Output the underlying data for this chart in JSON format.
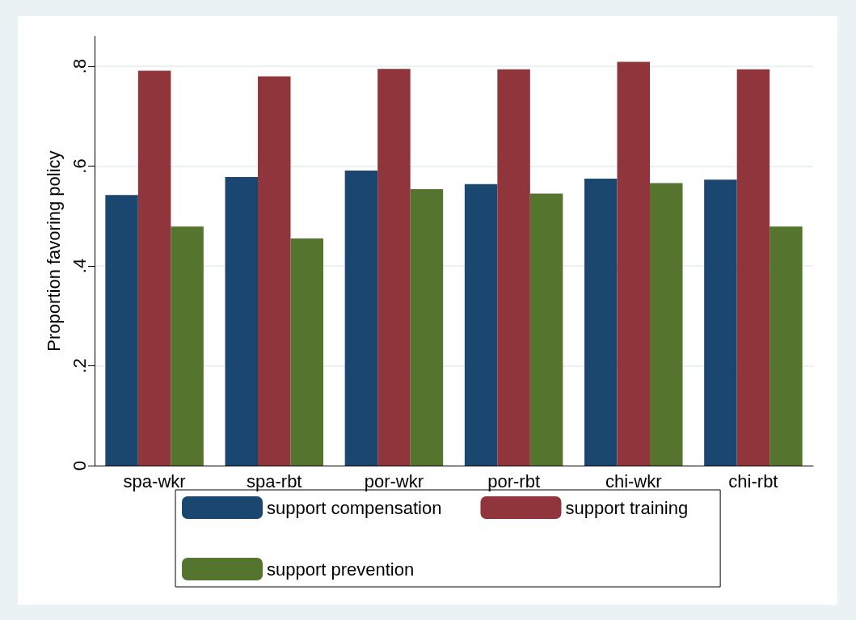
{
  "chart_data": {
    "type": "bar",
    "ylabel": "Proportion favoring policy",
    "categories": [
      "spa-wkr",
      "spa-rbt",
      "por-wkr",
      "por-rbt",
      "chi-wkr",
      "chi-rbt"
    ],
    "series": [
      {
        "name": "support compensation",
        "color": "#1a476f",
        "values": [
          0.542,
          0.578,
          0.591,
          0.564,
          0.575,
          0.573
        ]
      },
      {
        "name": "support training",
        "color": "#90353b",
        "values": [
          0.791,
          0.78,
          0.795,
          0.794,
          0.809,
          0.794
        ]
      },
      {
        "name": "support prevention",
        "color": "#55752f",
        "values": [
          0.479,
          0.455,
          0.554,
          0.545,
          0.566,
          0.479
        ]
      }
    ],
    "ylim": [
      0,
      0.86
    ],
    "yticks": [
      0,
      {
        "value": 0.2,
        "label": ".2"
      },
      {
        "value": 0.4,
        "label": ".4"
      },
      {
        "value": 0.6,
        "label": ".6"
      },
      {
        "value": 0.8,
        "label": ".8"
      }
    ],
    "grid": "y",
    "legend": "bottom"
  }
}
